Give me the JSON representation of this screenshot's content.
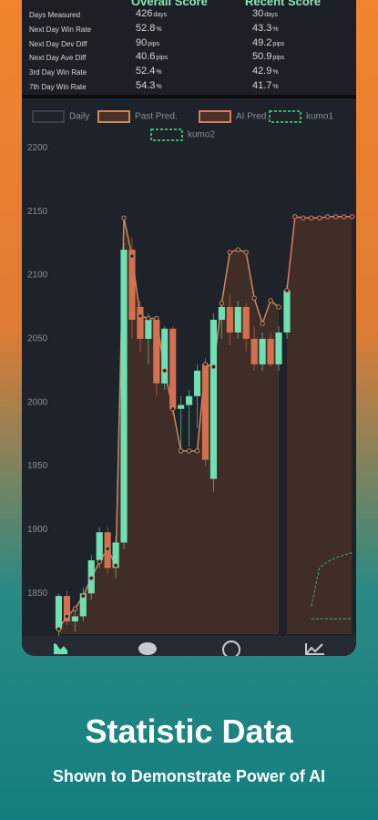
{
  "stats": {
    "columns": [
      "Overall Score",
      "Recent Score"
    ],
    "rows": [
      {
        "label": "Days Measured",
        "overall": 426,
        "overall_unit": "days",
        "recent": 30,
        "recent_unit": "days"
      },
      {
        "label": "Next Day Win Rate",
        "overall": 52.8,
        "overall_unit": "%",
        "recent": 43.3,
        "recent_unit": "%"
      },
      {
        "label": "Next Day Dev Diff",
        "overall": 90,
        "overall_unit": "pips",
        "recent": 49.2,
        "recent_unit": "pips"
      },
      {
        "label": "Next Day Ave Diff",
        "overall": 40.6,
        "overall_unit": "pips",
        "recent": 50.9,
        "recent_unit": "pips"
      },
      {
        "label": "3rd Day Win Rate",
        "overall": 52.4,
        "overall_unit": "%",
        "recent": 42.9,
        "recent_unit": "%"
      },
      {
        "label": "7th Day Win Rate",
        "overall": 54.3,
        "overall_unit": "%",
        "recent": 41.7,
        "recent_unit": "%"
      }
    ]
  },
  "chart_data": {
    "type": "candlestick",
    "categories": [
      null,
      null,
      null,
      null,
      null,
      null,
      null,
      null,
      null,
      null,
      null,
      null,
      null,
      null,
      null,
      null,
      null,
      null,
      null,
      null,
      null,
      null,
      null,
      null,
      null,
      null,
      null,
      null,
      null,
      null,
      null,
      null,
      null,
      null,
      null,
      null,
      null
    ],
    "ylim": [
      1818,
      2216
    ],
    "yticks": [
      1850,
      1900,
      1950,
      2000,
      2050,
      2100,
      2150,
      2200
    ],
    "candles": {
      "name": "Daily",
      "up_color": "#6fe0b2",
      "down_color": "#d4704f",
      "open": [
        1822,
        1848,
        1828,
        1832,
        1850,
        1876,
        1898,
        1870,
        1890,
        2120,
        2075,
        2050,
        2065,
        2015,
        2058,
        1995,
        1998,
        2005,
        2030,
        1940,
        2065,
        2075,
        2055,
        2075,
        2050,
        2030,
        2050,
        2030,
        2055,
        null,
        null,
        null,
        null,
        null,
        null,
        null,
        null
      ],
      "high": [
        1850,
        1852,
        1838,
        1855,
        1880,
        1902,
        1902,
        1895,
        2125,
        2130,
        2080,
        2070,
        2068,
        2060,
        2060,
        2005,
        2010,
        2030,
        2035,
        2070,
        2080,
        2085,
        2080,
        2078,
        2060,
        2055,
        2055,
        2060,
        2092,
        null,
        null,
        null,
        null,
        null,
        null,
        null,
        null
      ],
      "low": [
        1815,
        1825,
        1820,
        1828,
        1845,
        1870,
        1865,
        1862,
        1885,
        2050,
        2040,
        2030,
        2005,
        2010,
        1990,
        1960,
        1965,
        1980,
        1950,
        1930,
        2050,
        2045,
        2050,
        2040,
        2025,
        2025,
        2028,
        2025,
        2050,
        null,
        null,
        null,
        null,
        null,
        null,
        null,
        null
      ],
      "close": [
        1848,
        1828,
        1832,
        1850,
        1876,
        1898,
        1870,
        1890,
        2120,
        2065,
        2050,
        2065,
        2015,
        2058,
        1995,
        1998,
        2005,
        2025,
        1955,
        2065,
        2075,
        2055,
        2075,
        2050,
        2030,
        2050,
        2030,
        2055,
        2088,
        null,
        null,
        null,
        null,
        null,
        null,
        null,
        null
      ]
    },
    "lines": [
      {
        "name": "Past Pred.",
        "color": "#c98a5a",
        "fill": "#4a3128",
        "dashed": false,
        "markers": true,
        "values": [
          1822,
          1832,
          1838,
          1848,
          1862,
          1875,
          1885,
          1872,
          2145,
          2115,
          2068,
          2066,
          2066,
          2025,
          1995,
          1962,
          1962,
          1962,
          2030,
          2028,
          2078,
          2118,
          2120,
          2118,
          2082,
          2062,
          2080,
          2075,
          null,
          null,
          null,
          null,
          null,
          null,
          null,
          null,
          null
        ]
      },
      {
        "name": "AI Pred.",
        "color": "#e07a5f",
        "fill": "#4a3128",
        "dashed": false,
        "markers": true,
        "values": [
          null,
          null,
          null,
          null,
          null,
          null,
          null,
          null,
          null,
          null,
          null,
          null,
          null,
          null,
          null,
          null,
          null,
          null,
          null,
          null,
          null,
          null,
          null,
          null,
          null,
          null,
          null,
          null,
          2088,
          2146,
          2145,
          2145,
          2145,
          2146,
          2146,
          2146,
          2146
        ]
      },
      {
        "name": "kumo1",
        "color": "#3cb371",
        "fill": null,
        "dashed": true,
        "markers": false,
        "values": [
          null,
          null,
          null,
          null,
          null,
          null,
          null,
          null,
          null,
          null,
          null,
          null,
          null,
          null,
          null,
          null,
          null,
          null,
          null,
          null,
          null,
          null,
          null,
          null,
          null,
          null,
          null,
          null,
          null,
          null,
          null,
          1840,
          1870,
          1875,
          1878,
          1880,
          1882
        ]
      },
      {
        "name": "kumo2",
        "color": "#3cb371",
        "fill": null,
        "dashed": true,
        "markers": false,
        "values": [
          null,
          null,
          null,
          null,
          null,
          null,
          null,
          null,
          null,
          null,
          null,
          null,
          null,
          null,
          null,
          null,
          null,
          null,
          null,
          null,
          null,
          null,
          null,
          null,
          null,
          null,
          null,
          null,
          null,
          null,
          null,
          1830,
          1830,
          1830,
          1830,
          1830,
          1830
        ]
      }
    ]
  },
  "caption": {
    "title": "Statistic Data",
    "subtitle": "Shown to Demonstrate Power of AI"
  }
}
